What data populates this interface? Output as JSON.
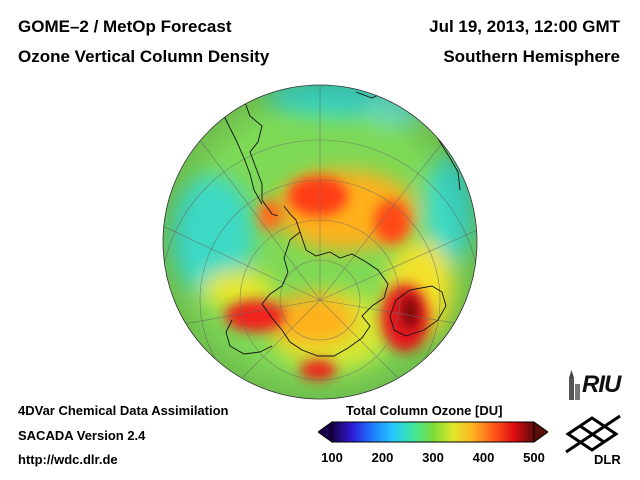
{
  "header": {
    "title_line1": "GOME–2 / MetOp Forecast",
    "title_line2": "Ozone Vertical Column Density",
    "date": "Jul 19, 2013, 12:00 GMT",
    "hemisphere": "Southern Hemisphere"
  },
  "footer": {
    "line1": "4DVar Chemical Data Assimilation",
    "line2": "SACADA Version 2.4",
    "line3": "http://wdc.dlr.de"
  },
  "colorbar": {
    "title": "Total Column Ozone [DU]",
    "ticks": [
      "100",
      "200",
      "300",
      "400",
      "500"
    ],
    "range": [
      100,
      500
    ],
    "colors": [
      "#1a004a",
      "#2d1bd6",
      "#1e7bff",
      "#25c8ff",
      "#3fe6a0",
      "#7bdc3a",
      "#e0e82a",
      "#ffb020",
      "#ff5a1a",
      "#e00d10",
      "#5a0c0c"
    ]
  },
  "logos": {
    "riu": "RIU",
    "dlr": "DLR"
  },
  "map": {
    "projection": "orthographic",
    "center": "South Pole",
    "ocean_color": "#35d8c8",
    "coast_color": "#111111"
  }
}
